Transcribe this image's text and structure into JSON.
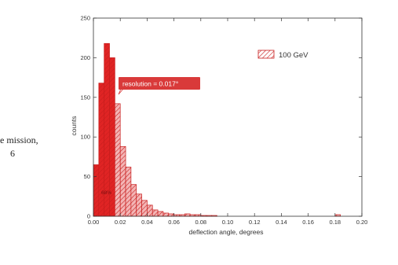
{
  "side_text": {
    "line1": "e mission,",
    "line2": "6"
  },
  "colors": {
    "bar_fill": "#e02424",
    "bar_fill_light": "#f3b5b5",
    "hatch": "#c81e1e",
    "annotation_bg": "#d93a3a"
  },
  "chart_data": {
    "type": "bar",
    "title": "",
    "xlabel": "deflection angle, degrees",
    "ylabel": "counts",
    "xlim": [
      0.0,
      0.2
    ],
    "ylim": [
      0,
      250
    ],
    "xticks": [
      "0.00",
      "0.02",
      "0.04",
      "0.06",
      "0.08",
      "0.10",
      "0.12",
      "0.14",
      "0.16",
      "0.18",
      "0.20"
    ],
    "yticks": [
      "0",
      "50",
      "100",
      "150",
      "200",
      "250"
    ],
    "grid": false,
    "legend": {
      "label": "100 GeV",
      "position": "top-right"
    },
    "annotation": "resolution = 0.017°",
    "inside_label": "68%",
    "bin_width": 0.004,
    "resolution_cut": 0.017,
    "bin_starts": [
      0.0,
      0.004,
      0.008,
      0.012,
      0.016,
      0.02,
      0.024,
      0.028,
      0.032,
      0.036,
      0.04,
      0.044,
      0.048,
      0.052,
      0.056,
      0.06,
      0.064,
      0.068,
      0.072,
      0.076,
      0.08,
      0.084,
      0.088,
      0.18
    ],
    "values": [
      65,
      168,
      218,
      200,
      142,
      88,
      62,
      40,
      28,
      20,
      14,
      8,
      6,
      4,
      3,
      2,
      2,
      3,
      2,
      2,
      1,
      1,
      1,
      2
    ]
  }
}
